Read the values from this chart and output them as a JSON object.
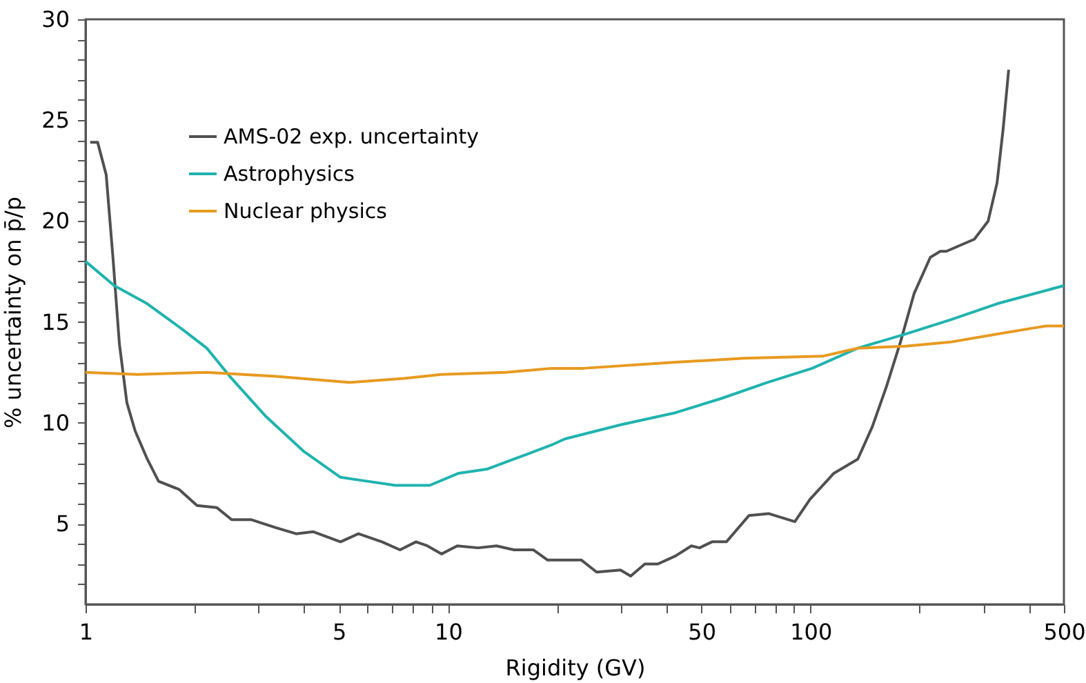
{
  "chart_data": {
    "type": "line",
    "xlabel": "Rigidity (GV)",
    "ylabel": "% uncertainty on p̄/p",
    "log": "x",
    "grid": false,
    "legend": "top left",
    "line_style": "solid",
    "marker": "none",
    "xlim": [
      1,
      500
    ],
    "xticks": [
      1,
      {
        "value": 2,
        "label": null
      },
      {
        "value": 3,
        "label": null
      },
      {
        "value": 4,
        "label": null
      },
      5,
      {
        "value": 6,
        "label": null
      },
      {
        "value": 7,
        "label": null
      },
      {
        "value": 8,
        "label": null
      },
      {
        "value": 9,
        "label": null
      },
      10,
      {
        "value": 20,
        "label": null
      },
      {
        "value": 30,
        "label": null
      },
      {
        "value": 40,
        "label": null
      },
      50,
      {
        "value": 60,
        "label": null
      },
      {
        "value": 70,
        "label": null
      },
      {
        "value": 80,
        "label": null
      },
      {
        "value": 90,
        "label": null
      },
      100,
      {
        "value": 200,
        "label": null
      },
      {
        "value": 300,
        "label": null
      },
      {
        "value": 400,
        "label": null
      },
      500
    ],
    "ylim": [
      1,
      30
    ],
    "yticks": [
      {
        "value": 2,
        "label": null
      },
      {
        "value": 3,
        "label": null
      },
      {
        "value": 4,
        "label": null
      },
      5,
      {
        "value": 6,
        "label": null
      },
      {
        "value": 7,
        "label": null
      },
      {
        "value": 8,
        "label": null
      },
      {
        "value": 9,
        "label": null
      },
      10,
      {
        "value": 11,
        "label": null
      },
      {
        "value": 12,
        "label": null
      },
      {
        "value": 13,
        "label": null
      },
      {
        "value": 14,
        "label": null
      },
      15,
      {
        "value": 16,
        "label": null
      },
      {
        "value": 17,
        "label": null
      },
      {
        "value": 18,
        "label": null
      },
      {
        "value": 19,
        "label": null
      },
      20,
      {
        "value": 21,
        "label": null
      },
      {
        "value": 22,
        "label": null
      },
      {
        "value": 23,
        "label": null
      },
      {
        "value": 24,
        "label": null
      },
      25,
      {
        "value": 26,
        "label": null
      },
      {
        "value": 27,
        "label": null
      },
      {
        "value": 28,
        "label": null
      },
      {
        "value": 29,
        "label": null
      },
      30
    ],
    "series": [
      {
        "name": "AMS-02 exp. uncertainty",
        "color": "#505050",
        "x": [
          1.03,
          1.08,
          1.14,
          1.19,
          1.24,
          1.3,
          1.37,
          1.48,
          1.59,
          1.81,
          2.03,
          2.3,
          2.53,
          2.86,
          3.35,
          3.81,
          4.24,
          5.05,
          5.66,
          6.57,
          7.37,
          8.16,
          8.77,
          9.6,
          10.6,
          12.1,
          13.6,
          15.2,
          17.2,
          18.8,
          21.0,
          23.3,
          25.7,
          29.9,
          31.9,
          34.9,
          37.9,
          42.4,
          46.9,
          49.4,
          53.5,
          58.6,
          67.6,
          76.6,
          90.5,
          99.6,
          116,
          135,
          148,
          162,
          177,
          193,
          214,
          228,
          237,
          283,
          309,
          327,
          340,
          352
        ],
        "values": [
          23.9,
          23.9,
          22.3,
          18.2,
          13.9,
          11.0,
          9.6,
          8.2,
          7.1,
          6.7,
          5.9,
          5.8,
          5.2,
          5.2,
          4.8,
          4.5,
          4.6,
          4.1,
          4.5,
          4.1,
          3.7,
          4.1,
          3.9,
          3.5,
          3.9,
          3.8,
          3.9,
          3.7,
          3.7,
          3.2,
          3.2,
          3.2,
          2.6,
          2.7,
          2.4,
          3.0,
          3.0,
          3.4,
          3.9,
          3.8,
          4.1,
          4.1,
          5.4,
          5.5,
          5.1,
          6.2,
          7.5,
          8.2,
          9.8,
          11.8,
          14.0,
          16.4,
          18.2,
          18.5,
          18.5,
          19.1,
          20.0,
          21.9,
          24.6,
          27.5
        ]
      },
      {
        "name": "Astrophysics",
        "color": "#1fb3ae",
        "x": [
          1,
          1.2,
          1.48,
          1.86,
          2.16,
          2.5,
          3.15,
          3.99,
          5.05,
          6.0,
          7.16,
          8.9,
          10.7,
          12.8,
          15.2,
          19.3,
          21.0,
          29.9,
          42.4,
          56.6,
          76,
          101,
          135,
          183,
          243,
          327,
          500
        ],
        "values": [
          18.0,
          16.8,
          15.9,
          14.6,
          13.7,
          12.3,
          10.3,
          8.6,
          7.3,
          7.1,
          6.9,
          6.9,
          7.5,
          7.7,
          8.2,
          8.9,
          9.2,
          9.9,
          10.5,
          11.2,
          12.0,
          12.7,
          13.7,
          14.4,
          15.1,
          15.9,
          16.8
        ]
      },
      {
        "name": "Nuclear physics",
        "color": "#e89a20",
        "x": [
          1,
          1.39,
          2.16,
          3.35,
          5.33,
          7.56,
          9.6,
          14.4,
          19.3,
          23.6,
          42.4,
          65.7,
          108,
          135,
          183,
          243,
          327,
          413,
          447,
          500
        ],
        "values": [
          12.5,
          12.4,
          12.5,
          12.3,
          12.0,
          12.2,
          12.4,
          12.5,
          12.7,
          12.7,
          13.0,
          13.2,
          13.3,
          13.7,
          13.8,
          14.0,
          14.4,
          14.7,
          14.8,
          14.8
        ]
      }
    ]
  }
}
